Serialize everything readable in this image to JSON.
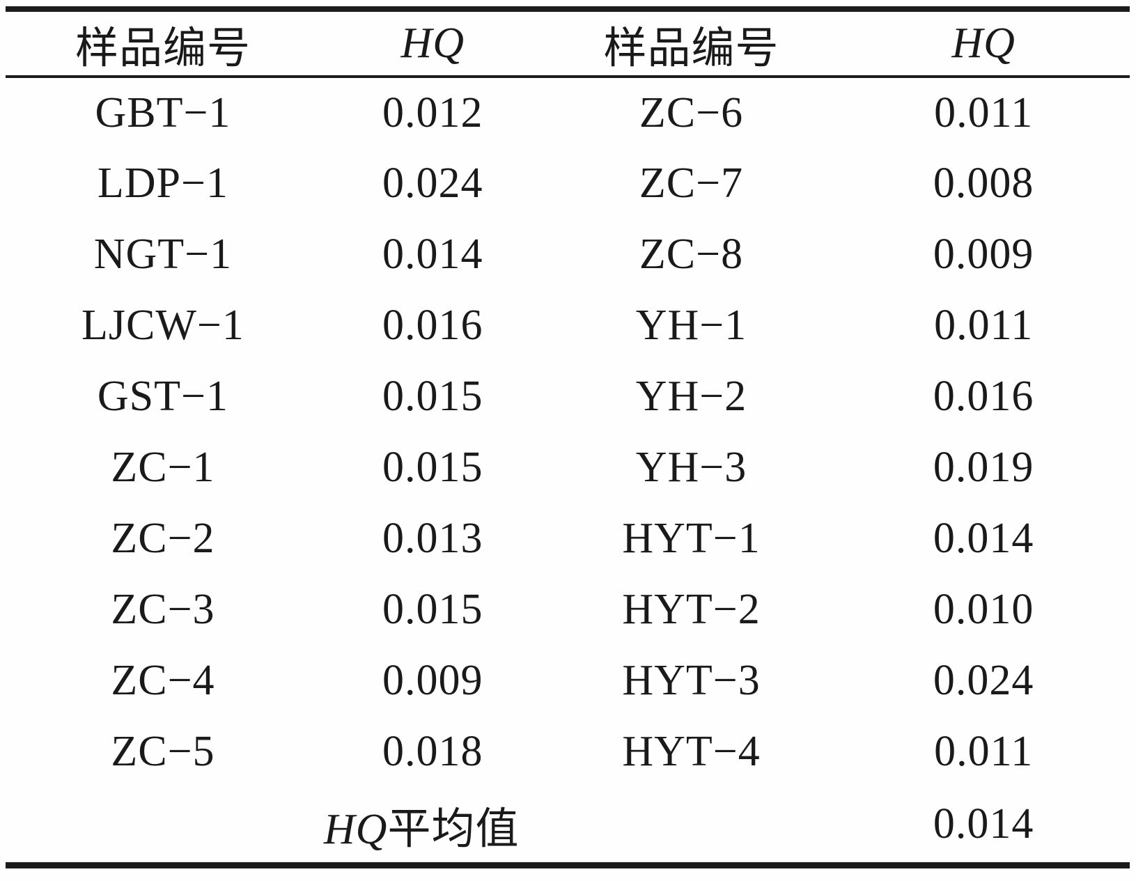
{
  "table": {
    "header": {
      "sample_left": "样品编号",
      "hq_left": "HQ",
      "sample_right": "样品编号",
      "hq_right": "HQ"
    },
    "rows": [
      {
        "left_id": "GBT−1",
        "left_hq": "0.012",
        "right_id": "ZC−6",
        "right_hq": "0.011"
      },
      {
        "left_id": "LDP−1",
        "left_hq": "0.024",
        "right_id": "ZC−7",
        "right_hq": "0.008"
      },
      {
        "left_id": "NGT−1",
        "left_hq": "0.014",
        "right_id": "ZC−8",
        "right_hq": "0.009"
      },
      {
        "left_id": "LJCW−1",
        "left_hq": "0.016",
        "right_id": "YH−1",
        "right_hq": "0.011"
      },
      {
        "left_id": "GST−1",
        "left_hq": "0.015",
        "right_id": "YH−2",
        "right_hq": "0.016"
      },
      {
        "left_id": "ZC−1",
        "left_hq": "0.015",
        "right_id": "YH−3",
        "right_hq": "0.019"
      },
      {
        "left_id": "ZC−2",
        "left_hq": "0.013",
        "right_id": "HYT−1",
        "right_hq": "0.014"
      },
      {
        "left_id": "ZC−3",
        "left_hq": "0.015",
        "right_id": "HYT−2",
        "right_hq": "0.010"
      },
      {
        "left_id": "ZC−4",
        "left_hq": "0.009",
        "right_id": "HYT−3",
        "right_hq": "0.024"
      },
      {
        "left_id": "ZC−5",
        "left_hq": "0.018",
        "right_id": "HYT−4",
        "right_hq": "0.011"
      }
    ],
    "footer": {
      "label_hq": "HQ",
      "label_suffix": "平均值",
      "value": "0.014"
    }
  },
  "chart_data": {
    "type": "table",
    "columns": [
      "样品编号",
      "HQ",
      "样品编号",
      "HQ"
    ],
    "samples": [
      "GBT-1",
      "LDP-1",
      "NGT-1",
      "LJCW-1",
      "GST-1",
      "ZC-1",
      "ZC-2",
      "ZC-3",
      "ZC-4",
      "ZC-5",
      "ZC-6",
      "ZC-7",
      "ZC-8",
      "YH-1",
      "YH-2",
      "YH-3",
      "HYT-1",
      "HYT-2",
      "HYT-3",
      "HYT-4"
    ],
    "hq_values": [
      0.012,
      0.024,
      0.014,
      0.016,
      0.015,
      0.015,
      0.013,
      0.015,
      0.009,
      0.018,
      0.011,
      0.008,
      0.009,
      0.011,
      0.016,
      0.019,
      0.014,
      0.01,
      0.024,
      0.011
    ],
    "hq_mean_label": "HQ平均值",
    "hq_mean": 0.014
  },
  "colors": {
    "text": "#1a1a1a",
    "rule": "#1c1c1c",
    "background": "#fefefe"
  }
}
